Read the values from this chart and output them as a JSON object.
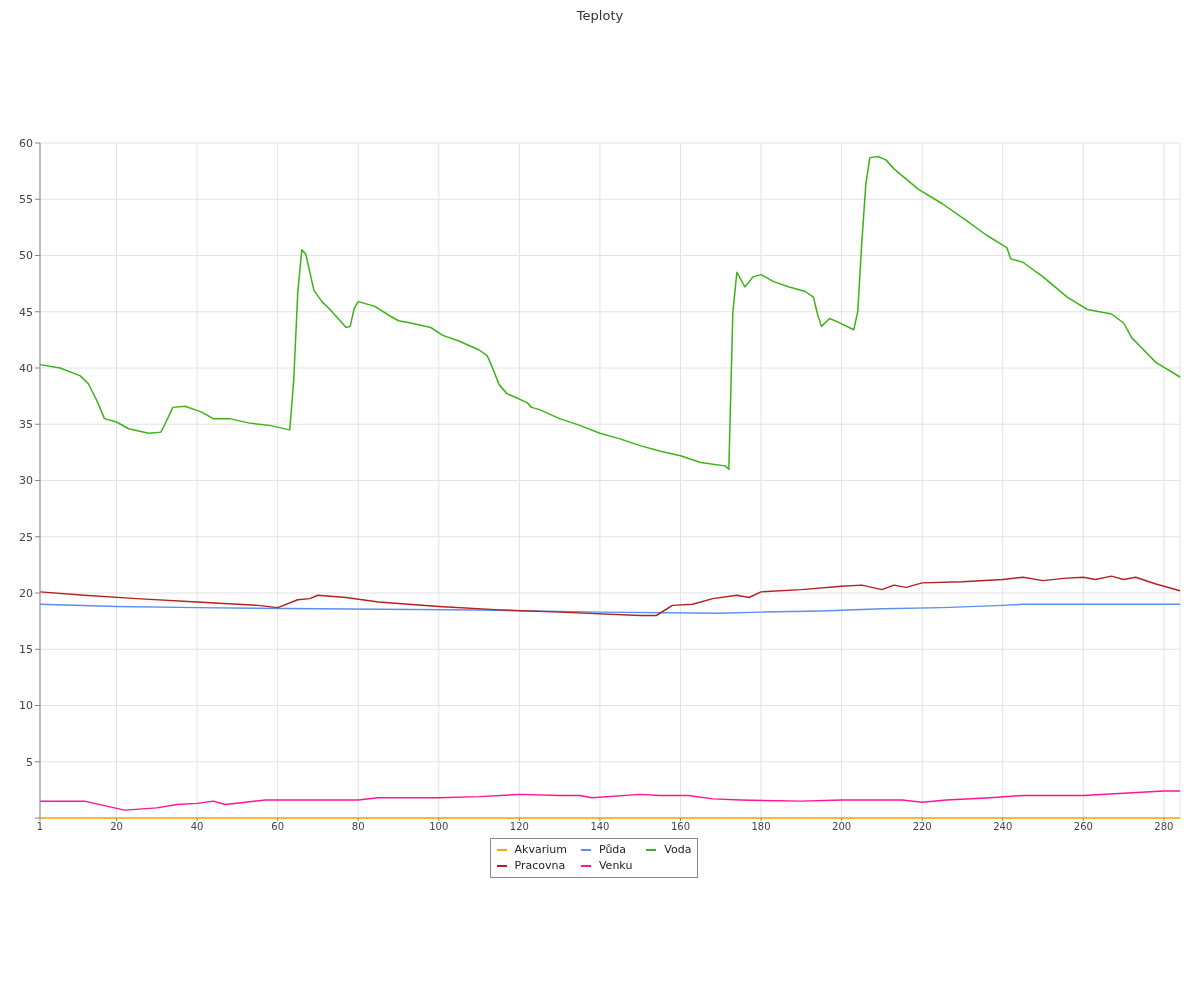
{
  "chart_data": {
    "type": "line",
    "title": "Teploty",
    "xlim": [
      1,
      284
    ],
    "xticks": [
      1,
      20,
      40,
      60,
      80,
      100,
      120,
      140,
      160,
      180,
      200,
      220,
      240,
      260,
      280
    ],
    "ylim": [
      0,
      60
    ],
    "yticks": [
      {
        "value": 0,
        "label": null
      },
      5,
      10,
      15,
      20,
      25,
      30,
      35,
      40,
      45,
      50,
      55,
      60
    ],
    "grid": true,
    "legend": "bottom",
    "series": [
      {
        "name": "Půda",
        "color": "#5b8ff0",
        "x": [
          1,
          20,
          40,
          70,
          110,
          140,
          170,
          180,
          195,
          210,
          225,
          240,
          245,
          284
        ],
        "values": [
          19.0,
          18.8,
          18.7,
          18.6,
          18.5,
          18.3,
          18.2,
          18.3,
          18.4,
          18.6,
          18.7,
          18.9,
          19.0,
          19.0
        ]
      },
      {
        "name": "Voda",
        "color": "#3cb317",
        "x": [
          1,
          6,
          11,
          13,
          15,
          17,
          20,
          23,
          28,
          31,
          32,
          34,
          37,
          41,
          44,
          48,
          53,
          58,
          63,
          64,
          65,
          66,
          67,
          69,
          71,
          73,
          75,
          77,
          78,
          79,
          80,
          84,
          88,
          90,
          93,
          98,
          101,
          105,
          110,
          112,
          113,
          115,
          117,
          119,
          122,
          123,
          125,
          130,
          135,
          140,
          145,
          150,
          155,
          160,
          165,
          171,
          172,
          173,
          174,
          176,
          178,
          180,
          183,
          187,
          191,
          193,
          194,
          195,
          197,
          199,
          203,
          204,
          205,
          206,
          207,
          209,
          211,
          213,
          219,
          225,
          231,
          236,
          241,
          242,
          245,
          250,
          256,
          261,
          267,
          270,
          272,
          275,
          278,
          284
        ],
        "values": [
          40.3,
          40.0,
          39.3,
          38.6,
          37.2,
          35.5,
          35.2,
          34.6,
          34.2,
          34.3,
          35.0,
          36.5,
          36.6,
          36.1,
          35.5,
          35.5,
          35.1,
          34.9,
          34.5,
          39.0,
          46.8,
          50.5,
          50.1,
          46.9,
          45.9,
          45.2,
          44.4,
          43.6,
          43.7,
          45.3,
          45.9,
          45.5,
          44.6,
          44.2,
          44.0,
          43.6,
          42.9,
          42.4,
          41.6,
          41.1,
          40.3,
          38.5,
          37.7,
          37.4,
          36.9,
          36.5,
          36.3,
          35.5,
          34.9,
          34.2,
          33.7,
          33.1,
          32.6,
          32.2,
          31.6,
          31.3,
          31.0,
          45.0,
          48.5,
          47.2,
          48.1,
          48.3,
          47.7,
          47.2,
          46.8,
          46.3,
          44.8,
          43.7,
          44.4,
          44.1,
          43.4,
          45.0,
          51.1,
          56.3,
          58.7,
          58.8,
          58.5,
          57.7,
          55.9,
          54.6,
          53.1,
          51.8,
          50.7,
          49.7,
          49.4,
          48.1,
          46.3,
          45.2,
          44.8,
          44.0,
          42.7,
          41.6,
          40.5,
          39.2
        ]
      },
      {
        "name": "Pracovna",
        "color": "#b22222",
        "x": [
          1,
          12,
          25,
          40,
          55,
          60,
          65,
          68,
          70,
          77,
          85,
          100,
          115,
          130,
          150,
          154,
          158,
          163,
          168,
          174,
          177,
          180,
          190,
          200,
          205,
          210,
          213,
          216,
          220,
          230,
          240,
          245,
          250,
          255,
          260,
          263,
          267,
          270,
          273,
          278,
          282,
          284
        ],
        "values": [
          20.1,
          19.8,
          19.5,
          19.2,
          18.9,
          18.7,
          19.4,
          19.5,
          19.8,
          19.6,
          19.2,
          18.8,
          18.5,
          18.3,
          18.0,
          18.0,
          18.9,
          19.0,
          19.5,
          19.8,
          19.6,
          20.1,
          20.3,
          20.6,
          20.7,
          20.3,
          20.7,
          20.5,
          20.9,
          21.0,
          21.2,
          21.4,
          21.1,
          21.3,
          21.4,
          21.2,
          21.5,
          21.2,
          21.4,
          20.8,
          20.4,
          20.2
        ]
      },
      {
        "name": "Akvarium",
        "color": "#ffa500",
        "x": [
          1,
          284
        ],
        "values": [
          0,
          0
        ]
      },
      {
        "name": "Venku",
        "color": "#ff1493",
        "x": [
          1,
          12,
          22,
          30,
          35,
          40,
          44,
          47,
          52,
          57,
          80,
          85,
          100,
          110,
          120,
          130,
          135,
          138,
          150,
          155,
          162,
          168,
          175,
          190,
          200,
          215,
          220,
          226,
          237,
          245,
          260,
          270,
          280,
          284
        ],
        "values": [
          1.5,
          1.5,
          0.7,
          0.9,
          1.2,
          1.3,
          1.5,
          1.2,
          1.4,
          1.6,
          1.6,
          1.8,
          1.8,
          1.9,
          2.1,
          2.0,
          2.0,
          1.8,
          2.1,
          2.0,
          2.0,
          1.7,
          1.6,
          1.5,
          1.6,
          1.6,
          1.4,
          1.6,
          1.8,
          2.0,
          2.0,
          2.2,
          2.4,
          2.4
        ]
      }
    ]
  }
}
